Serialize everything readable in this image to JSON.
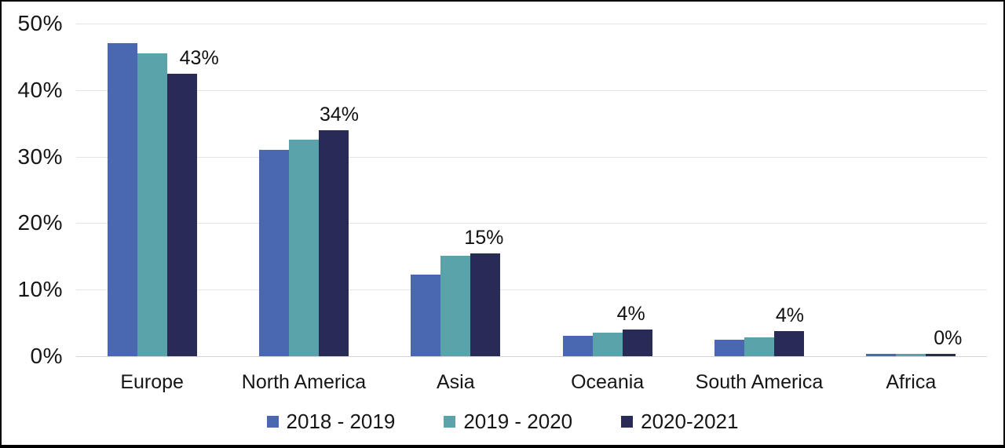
{
  "chart_data": {
    "type": "bar",
    "title": "",
    "xlabel": "",
    "ylabel": "",
    "categories": [
      "Europe",
      "North America",
      "Asia",
      "Oceania",
      "South America",
      "Africa"
    ],
    "series": [
      {
        "name": "2018 - 2019",
        "color": "#4a67b1",
        "values": [
          47,
          31,
          12.3,
          3.1,
          2.5,
          0.4
        ]
      },
      {
        "name": "2019 - 2020",
        "color": "#5aa3ab",
        "values": [
          45.5,
          32.5,
          15.1,
          3.6,
          2.8,
          0.4
        ]
      },
      {
        "name": "2020-2021",
        "color": "#272b55",
        "values": [
          42.5,
          34,
          15.5,
          4,
          3.8,
          0.4
        ]
      }
    ],
    "data_labels": [
      "43%",
      "34%",
      "15%",
      "4%",
      "4%",
      "0%"
    ],
    "data_label_series": "2020-2021",
    "label_x_offsets": [
      22,
      7,
      -2,
      -8,
      1,
      9
    ],
    "y_axis": {
      "min": 0,
      "max": 50,
      "ticks": [
        "0%",
        "10%",
        "20%",
        "30%",
        "40%",
        "50%"
      ],
      "grid": true
    },
    "legend_position": "bottom"
  },
  "colors": {
    "background": "#ffffff",
    "frame_border": "#000000",
    "gridline": "#e4e4e4",
    "baseline": "#d4d4d4",
    "text": "#161616"
  }
}
